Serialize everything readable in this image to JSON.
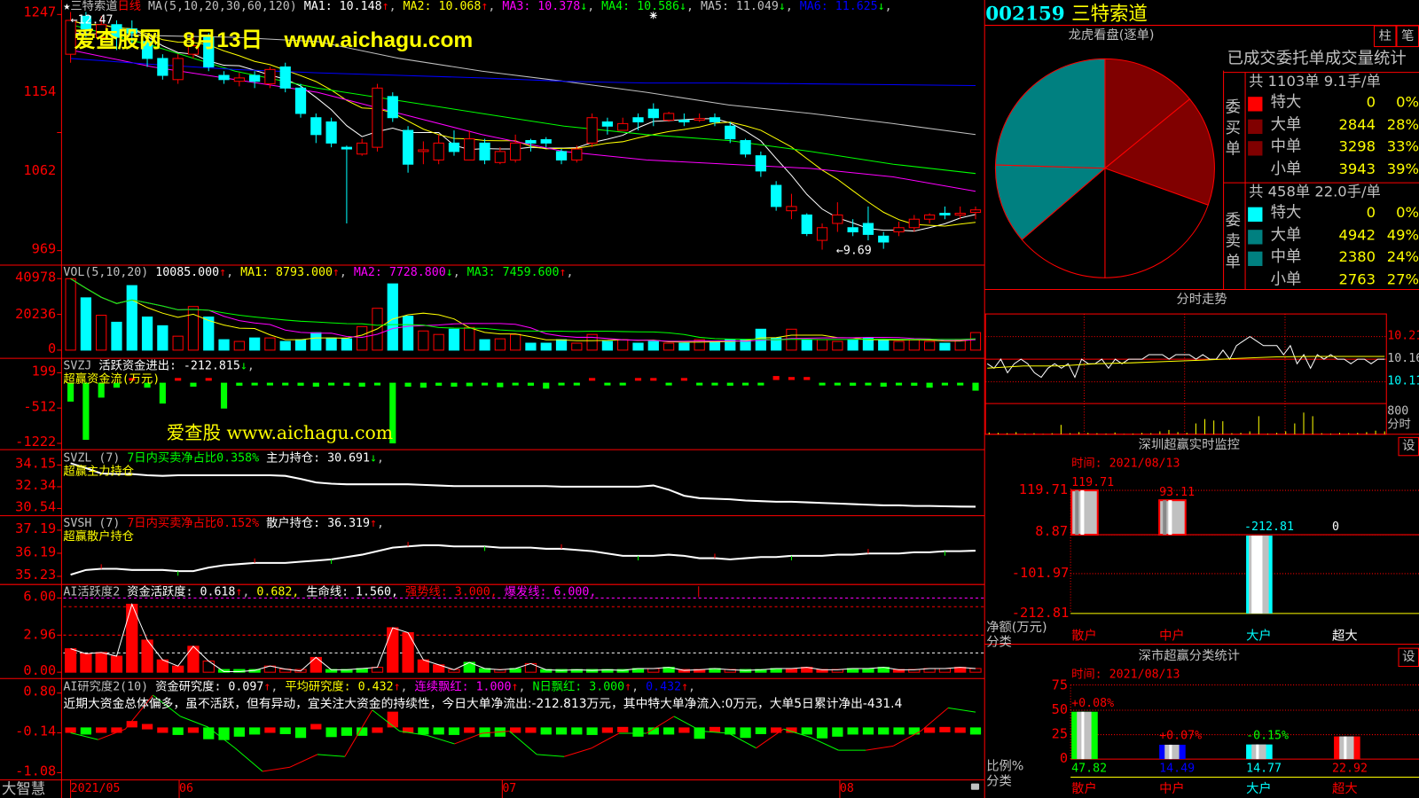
{
  "header": {
    "star": "★",
    "stock_name": "三特索道",
    "period": "日线",
    "ma_label": "MA(5,10,20,30,60,120)",
    "ma": [
      {
        "label": "MA1: 10.148",
        "dir": "↑",
        "color": "#ffffff"
      },
      {
        "label": "MA2: 10.068",
        "dir": "↑",
        "color": "#ffff00"
      },
      {
        "label": "MA3: 10.378",
        "dir": "↓",
        "color": "#ff00ff"
      },
      {
        "label": "MA4: 10.586",
        "dir": "↓",
        "color": "#00ff00"
      },
      {
        "label": "MA5: 11.049",
        "dir": "↓",
        "color": "#c0c0c0"
      },
      {
        "label": "MA6: 11.625",
        "dir": "↓",
        "color": "#0000ff"
      }
    ]
  },
  "watermark": "爱查股网　8月13日　www.aichagu.com",
  "watermark2": "爱查股 www.aichagu.com",
  "price_axis": [
    "1247",
    "1154",
    "1062",
    "969"
  ],
  "high_label": "←12.47",
  "low_label": "←9.69",
  "colors": {
    "up": "#ff0000",
    "down": "#00ffff",
    "ma1": "#ffffff",
    "ma2": "#ffff00",
    "ma3": "#ff00ff",
    "ma4": "#00ff00",
    "ma5": "#c0c0c0",
    "ma6": "#0000ff"
  },
  "candles": [
    [
      12.0,
      12.4,
      12.5,
      11.9
    ],
    [
      12.45,
      12.3,
      12.5,
      12.2
    ],
    [
      12.2,
      12.35,
      12.45,
      12.1
    ],
    [
      12.35,
      12.2,
      12.4,
      12.05
    ],
    [
      12.3,
      12.25,
      12.4,
      12.1
    ],
    [
      12.15,
      11.95,
      12.2,
      11.85
    ],
    [
      11.95,
      11.75,
      12.0,
      11.7
    ],
    [
      11.7,
      11.95,
      12.0,
      11.65
    ],
    [
      12.0,
      12.1,
      12.25,
      11.95
    ],
    [
      12.2,
      11.85,
      12.25,
      11.8
    ],
    [
      11.75,
      11.7,
      11.8,
      11.65
    ],
    [
      11.68,
      11.72,
      11.78,
      11.62
    ],
    [
      11.75,
      11.68,
      11.8,
      11.6
    ],
    [
      11.65,
      11.82,
      11.85,
      11.6
    ],
    [
      11.85,
      11.6,
      11.9,
      11.55
    ],
    [
      11.6,
      11.3,
      11.65,
      11.25
    ],
    [
      11.25,
      11.05,
      11.3,
      10.95
    ],
    [
      11.2,
      10.95,
      11.25,
      10.9
    ],
    [
      10.9,
      10.88,
      10.92,
      10.0
    ],
    [
      10.82,
      10.95,
      11.0,
      10.8
    ],
    [
      10.9,
      11.6,
      11.65,
      10.85
    ],
    [
      11.5,
      11.25,
      11.55,
      11.2
    ],
    [
      11.1,
      10.7,
      11.15,
      10.6
    ],
    [
      10.85,
      10.87,
      10.97,
      10.7
    ],
    [
      10.75,
      10.95,
      11.05,
      10.7
    ],
    [
      10.95,
      10.85,
      11.1,
      10.8
    ],
    [
      10.75,
      11.0,
      11.1,
      10.75
    ],
    [
      10.95,
      10.75,
      11.0,
      10.7
    ],
    [
      10.72,
      10.85,
      10.9,
      10.7
    ],
    [
      10.75,
      10.95,
      11.05,
      10.72
    ],
    [
      10.98,
      10.95,
      11.0,
      10.85
    ],
    [
      10.99,
      10.95,
      11.02,
      10.9
    ],
    [
      10.85,
      10.75,
      10.88,
      10.7
    ],
    [
      10.75,
      10.88,
      10.92,
      10.72
    ],
    [
      10.95,
      11.25,
      11.3,
      10.9
    ],
    [
      11.2,
      11.15,
      11.25,
      11.05
    ],
    [
      11.1,
      11.18,
      11.25,
      11.1
    ],
    [
      11.25,
      11.2,
      11.3,
      11.1
    ],
    [
      11.35,
      11.25,
      11.42,
      11.15
    ],
    [
      11.22,
      11.3,
      11.32,
      11.2
    ],
    [
      11.22,
      11.2,
      11.3,
      11.15
    ],
    [
      11.22,
      11.24,
      11.3,
      11.2
    ],
    [
      11.25,
      11.2,
      11.3,
      11.15
    ],
    [
      11.15,
      11.0,
      11.2,
      10.95
    ],
    [
      10.98,
      10.82,
      11.0,
      10.78
    ],
    [
      10.8,
      10.62,
      10.85,
      10.55
    ],
    [
      10.45,
      10.2,
      10.5,
      10.15
    ],
    [
      10.15,
      10.2,
      10.35,
      10.05
    ],
    [
      10.1,
      9.88,
      10.12,
      9.85
    ],
    [
      9.8,
      9.95,
      10.0,
      9.69
    ],
    [
      10.0,
      10.1,
      10.25,
      9.9
    ],
    [
      9.95,
      9.9,
      10.05,
      9.85
    ],
    [
      10.0,
      9.87,
      10.2,
      9.8
    ],
    [
      9.85,
      9.78,
      9.9,
      9.7
    ],
    [
      9.9,
      9.95,
      10.02,
      9.85
    ],
    [
      9.95,
      10.05,
      10.1,
      9.9
    ],
    [
      10.05,
      10.1,
      10.12,
      10.0
    ],
    [
      10.12,
      10.1,
      10.2,
      10.05
    ],
    [
      10.1,
      10.12,
      10.2,
      10.05
    ],
    [
      10.13,
      10.16,
      10.2,
      10.05
    ]
  ],
  "ma_slow": {
    "ma3": [
      12.05,
      11.85,
      11.7,
      11.55,
      11.3,
      11.05,
      10.85,
      10.75,
      10.7,
      10.65,
      10.55,
      10.38
    ],
    "ma4": [
      12.35,
      12.1,
      11.8,
      11.6,
      11.45,
      11.3,
      11.15,
      11.05,
      10.98,
      10.85,
      10.7,
      10.59
    ],
    "ma5": [
      12.25,
      12.22,
      12.2,
      12.15,
      11.95,
      11.8,
      11.68,
      11.55,
      11.4,
      11.3,
      11.18,
      11.05
    ],
    "ma6": [
      11.95,
      11.88,
      11.82,
      11.78,
      11.75,
      11.72,
      11.68,
      11.66,
      11.66,
      11.65,
      11.64,
      11.63
    ]
  },
  "vol": {
    "label": "VOL(5,10,20)",
    "value": "10085.000",
    "dir": "↑",
    "ma": [
      {
        "label": "MA1: 8793.000",
        "dir": "↑",
        "color": "#ffff00"
      },
      {
        "label": "MA2: 7728.800",
        "dir": "↓",
        "color": "#ff00ff"
      },
      {
        "label": "MA3: 7459.600",
        "dir": "↑",
        "color": "#00ff00"
      }
    ],
    "axis": [
      "40978",
      "20236",
      "0"
    ],
    "values": [
      40978,
      30000,
      20000,
      16000,
      37000,
      19000,
      14000,
      8000,
      25000,
      19000,
      6000,
      5000,
      7000,
      7000,
      5000,
      6000,
      10000,
      7000,
      6500,
      13500,
      24000,
      38000,
      19500,
      11000,
      9000,
      12000,
      13000,
      6000,
      6500,
      9000,
      4000,
      4000,
      6000,
      4000,
      9000,
      5000,
      6000,
      4000,
      5000,
      4000,
      4000,
      6000,
      5000,
      6000,
      6000,
      12000,
      7000,
      12000,
      6000,
      6000,
      5000,
      6000,
      7000,
      6000,
      5000,
      6000,
      5000,
      4000,
      6000,
      10085
    ]
  },
  "svzj": {
    "label": "SVZJ",
    "title": "活跃资金进出: -212.815",
    "dir": "↓",
    "sub": "超赢资金流(万元)",
    "axis": [
      "199",
      "-512",
      "-1222"
    ],
    "values": [
      -380,
      -1150,
      -300,
      -100,
      40,
      -100,
      -420,
      40,
      -80,
      40,
      -520,
      -60,
      -40,
      -30,
      -40,
      -60,
      -80,
      -40,
      -60,
      -80,
      -50,
      -1222,
      -80,
      -100,
      -60,
      -80,
      -70,
      -40,
      -90,
      -40,
      -60,
      -120,
      -30,
      -40,
      40,
      -30,
      -40,
      40,
      40,
      -30,
      40,
      -40,
      -30,
      -60,
      -40,
      -30,
      80,
      60,
      60,
      -40,
      -40,
      -60,
      -40,
      -80,
      -40,
      -60,
      -100,
      -40,
      -30,
      -160
    ]
  },
  "svzl": {
    "label": "SVZL (7)",
    "ratio": "7日内买卖净占比0.358%",
    "hold": "主力持仓: 30.691",
    "dir": "↓",
    "sub": "超赢主力持仓",
    "axis": [
      "34.15",
      "32.34",
      "30.54"
    ],
    "values": [
      34.3,
      33.9,
      33.45,
      33.4,
      33.4,
      33.3,
      33.25,
      33.3,
      33.3,
      33.3,
      33.3,
      33.3,
      33.3,
      33.3,
      33.25,
      33.0,
      32.7,
      32.6,
      32.55,
      32.55,
      32.55,
      32.55,
      32.55,
      32.5,
      32.45,
      32.4,
      32.4,
      32.4,
      32.4,
      32.4,
      32.4,
      32.4,
      32.35,
      32.35,
      32.35,
      32.35,
      32.35,
      32.35,
      32.45,
      32.1,
      31.6,
      31.4,
      31.35,
      31.3,
      31.2,
      31.15,
      31.1,
      31.1,
      31.05,
      31.0,
      30.95,
      30.9,
      30.85,
      30.8,
      30.8,
      30.75,
      30.75,
      30.72,
      30.7,
      30.69
    ]
  },
  "svsh": {
    "label": "SVSH (7)",
    "ratio": "7日内买卖净占比0.152%",
    "hold": "散户持仓: 36.319",
    "dir": "↑",
    "sub": "超赢散户持仓",
    "axis": [
      "37.19",
      "36.19",
      "35.23"
    ],
    "values": [
      35.3,
      35.5,
      35.55,
      35.55,
      35.5,
      35.5,
      35.5,
      35.45,
      35.45,
      35.6,
      35.7,
      35.75,
      35.8,
      35.8,
      35.8,
      35.85,
      35.9,
      35.95,
      36.05,
      36.15,
      36.3,
      36.45,
      36.5,
      36.55,
      36.55,
      36.5,
      36.5,
      36.5,
      36.45,
      36.45,
      36.45,
      36.4,
      36.4,
      36.35,
      36.3,
      36.2,
      36.1,
      36.1,
      36.1,
      36.15,
      36.1,
      36.0,
      36.0,
      35.95,
      36.0,
      36.05,
      36.05,
      36.1,
      36.1,
      36.1,
      36.15,
      36.15,
      36.2,
      36.2,
      36.2,
      36.25,
      36.25,
      36.3,
      36.3,
      36.32
    ]
  },
  "active": {
    "label": "AI活跃度2",
    "v1": "资金活跃度: 0.618",
    "d1": "↑",
    "v2": "0.682,",
    "v3": "生命线: 1.560,",
    "v4": "强势线: 3.000,",
    "v5": "爆发线: 6.000,",
    "axis": [
      "6.00",
      "2.96",
      "0.00"
    ],
    "lines": [
      6.0,
      5.3,
      3.0,
      1.56
    ],
    "values": [
      1.9,
      1.5,
      1.6,
      1.3,
      5.5,
      2.6,
      1.0,
      0.5,
      2.1,
      0.9,
      0.05,
      0.05,
      0.15,
      0.5,
      0.25,
      0.1,
      1.2,
      0.2,
      0.2,
      0.3,
      0.4,
      3.6,
      3.2,
      1.0,
      0.6,
      0.2,
      0.8,
      0.3,
      0.2,
      0.3,
      0.7,
      0.2,
      0.15,
      0.2,
      0.15,
      0.2,
      0.15,
      0.3,
      0.3,
      0.4,
      0.15,
      0.2,
      0.3,
      0.2,
      0.15,
      0.2,
      0.3,
      0.3,
      0.4,
      0.2,
      0.2,
      0.3,
      0.3,
      0.4,
      0.2,
      0.2,
      0.3,
      0.3,
      0.4,
      0.3
    ],
    "kinds": "rrrrrrrrrhggghhhrggghrrrrhgghghggggggghgrrghgggrrrhgggrhhhrh"
  },
  "research": {
    "label": "AI研究度2(10)",
    "v1": "资金研究度: 0.097",
    "v2": "平均研究度: 0.432",
    "v3": "连续飘红: 1.000",
    "v4": "N日飘红: 3.000",
    "v5": "0.432",
    "dir": "↑",
    "axis": [
      "0.80",
      "-0.14",
      "-1.08"
    ],
    "comment": "近期大资金总体偏多，虽不活跃，但有异动，宜关注大资金的持续性，今日大单净流出:-212.813万元，其中特大单净流入:0万元，大单5日累计净出-431.4",
    "bars": [
      0,
      -0.04,
      0.1,
      0.07,
      0.28,
      0.21,
      0.01,
      -0.05,
      0.1,
      -0.15,
      -0.17,
      -0.09,
      -0.04,
      0.06,
      -0.03,
      -0.12,
      0.21,
      -0.1,
      -0.07,
      -0.07,
      0.04,
      0.5,
      0.11,
      -0.04,
      -0.04,
      -0.05,
      0.09,
      -0.1,
      -0.09,
      0.05,
      0.04,
      -0.04,
      -0.04,
      -0.04,
      -0.05,
      0.09,
      0.14,
      -0.09,
      -0.04,
      -0.04,
      0.05,
      -0.14,
      0.14,
      -0.04,
      -0.12,
      -0.03,
      0.12,
      0.07,
      -0.04,
      -0.13,
      -0.09,
      -0.04,
      -0.04,
      -0.04,
      -0.04,
      -0.04,
      0.09,
      0.14,
      0.07,
      -0.04
    ],
    "line": [
      -0.14,
      -0.3,
      -0.05,
      0.75,
      0.25,
      0.0,
      -0.5,
      -1.05,
      -0.95,
      -0.65,
      -0.7,
      0.4,
      -0.1,
      -0.2,
      -0.4,
      -0.15,
      -0.1,
      -0.65,
      -0.7,
      -0.5,
      -0.15,
      -0.15,
      0.25,
      -0.1,
      -0.15,
      -0.5,
      -0.05,
      -0.25,
      -0.55,
      -0.55,
      -0.45,
      -0.1,
      0.45,
      0.35
    ]
  },
  "xaxis": {
    "logo": "大智慧",
    "dates": [
      "2021/05",
      "06",
      "07",
      "08"
    ]
  },
  "quote": {
    "code": "002159",
    "name": "三特索道"
  },
  "dragon": {
    "title": "龙虎看盘(逐单)",
    "btn_bar": "柱",
    "btn_tick": "笔",
    "table_title": "已成交委托单成交量统计",
    "buy": {
      "side": "委买单",
      "summary": "共 1103单 9.1手/单",
      "rows": [
        {
          "name": "特大",
          "value": "0",
          "pct": "0%",
          "color": "#ff0000"
        },
        {
          "name": "大单",
          "value": "2844",
          "pct": "28%",
          "color": "#800000"
        },
        {
          "name": "中单",
          "value": "3298",
          "pct": "33%",
          "color": "#800000"
        },
        {
          "name": "小单",
          "value": "3943",
          "pct": "39%",
          "color": "#000000"
        }
      ]
    },
    "sell": {
      "side": "委卖单",
      "summary": "共 458单 22.0手/单",
      "rows": [
        {
          "name": "特大",
          "value": "0",
          "pct": "0%",
          "color": "#00ffff"
        },
        {
          "name": "大单",
          "value": "4942",
          "pct": "49%",
          "color": "#008080"
        },
        {
          "name": "中单",
          "value": "2380",
          "pct": "24%",
          "color": "#008080"
        },
        {
          "name": "小单",
          "value": "2763",
          "pct": "27%",
          "color": "#000000"
        }
      ]
    }
  },
  "intraday": {
    "title": "分时走势",
    "axis": [
      "10.21",
      "10.16",
      "10.11",
      "800",
      "分时"
    ],
    "price": [
      10.15,
      10.14,
      10.16,
      10.13,
      10.15,
      10.16,
      10.15,
      10.13,
      10.12,
      10.14,
      10.15,
      10.14,
      10.15,
      10.12,
      10.16,
      10.15,
      10.15,
      10.16,
      10.14,
      10.16,
      10.15,
      10.16,
      10.16,
      10.16,
      10.17,
      10.17,
      10.17,
      10.16,
      10.17,
      10.17,
      10.17,
      10.16,
      10.17,
      10.16,
      10.16,
      10.18,
      10.16,
      10.19,
      10.2,
      10.21,
      10.2,
      10.19,
      10.19,
      10.19,
      10.17,
      10.19,
      10.15,
      10.17,
      10.14,
      10.17,
      10.16,
      10.17,
      10.16,
      10.16,
      10.15,
      10.16,
      10.16,
      10.15,
      10.16,
      10.16
    ],
    "avg": [
      10.14,
      10.145,
      10.145,
      10.15,
      10.152,
      10.155,
      10.158,
      10.162,
      10.165,
      10.166,
      10.166,
      10.166
    ],
    "volume": [
      50,
      40,
      30,
      60,
      20,
      30,
      10,
      30,
      260,
      30,
      60,
      40,
      30,
      20,
      50,
      10,
      20,
      40,
      30,
      80,
      120,
      60,
      40,
      300,
      420,
      380,
      360,
      30,
      40,
      80,
      500,
      20,
      40,
      80,
      300,
      600,
      500,
      30,
      20,
      40,
      30,
      40,
      60,
      100,
      80
    ]
  },
  "monitor": {
    "title": "深圳超赢实时监控",
    "btn": "设",
    "time": "时间: 2021/08/13",
    "axis": [
      "119.71",
      "8.87",
      "-101.97",
      "-212.81"
    ],
    "ylabel": "净额(万元)",
    "xlabel": "分类",
    "cats": [
      {
        "name": "散户",
        "value": 119.71,
        "label": "119.71",
        "color": "#ff0000"
      },
      {
        "name": "中户",
        "value": 93.11,
        "label": "93.11",
        "color": "#ff0000"
      },
      {
        "name": "大户",
        "value": -212.81,
        "label": "-212.81",
        "color": "#00ffff"
      },
      {
        "name": "超大",
        "value": 0,
        "label": "0",
        "color": "#ffffff"
      }
    ]
  },
  "classify": {
    "title": "深市超赢分类统计",
    "btn": "设",
    "time": "时间: 2021/08/13",
    "axis": [
      "75",
      "50",
      "25",
      "0"
    ],
    "ylabel": "比例%",
    "xlabel": "分类",
    "cats": [
      {
        "name": "散户",
        "value": 47.82,
        "label": "47.82",
        "change": "+0.08%",
        "change_color": "#ff0000",
        "color": "#00ff00",
        "name_color": "#ff0000"
      },
      {
        "name": "中户",
        "value": 14.49,
        "label": "14.49",
        "change": "+0.07%",
        "change_color": "#ff0000",
        "color": "#0000ff",
        "name_color": "#ff0000"
      },
      {
        "name": "大户",
        "value": 14.77,
        "label": "14.77",
        "change": "-0.15%",
        "change_color": "#00ff00",
        "color": "#00ffff",
        "name_color": "#00ffff"
      },
      {
        "name": "超大",
        "value": 22.92,
        "label": "22.92",
        "change": "",
        "change_color": "#ff0000",
        "color": "#ff0000",
        "name_color": "#ff0000"
      }
    ]
  }
}
